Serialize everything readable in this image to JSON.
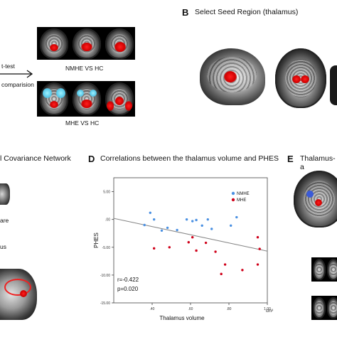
{
  "panelA": {
    "ttest_label": "t-test",
    "comparison_label": "comparision",
    "row1_caption": "NMHE VS  HC",
    "row2_caption": "MHE VS  HC"
  },
  "panelB": {
    "letter": "B",
    "title": "Select Seed Region (thalamus)"
  },
  "panelC": {
    "title_fragment": "l Covariance Network",
    "label1": "are",
    "label2": "us"
  },
  "panelD": {
    "letter": "D",
    "title": "Correlations between the thalamus volume and PHES"
  },
  "panelE": {
    "letter": "E",
    "title": "Thalamus-a"
  },
  "chart_data": {
    "type": "scatter",
    "title": "Correlations between the thalamus volume and PHES",
    "xlabel": "Thalamus volume",
    "xunit": "cm³",
    "ylabel": "PHES",
    "xlim": [
      0.2,
      1.0
    ],
    "ylim": [
      -15.0,
      7.5
    ],
    "xticks": [
      ".40",
      ".60",
      ".80",
      "1.00"
    ],
    "xtick_values": [
      0.4,
      0.6,
      0.8,
      1.0
    ],
    "yticks": [
      "5.00",
      ".00",
      "-5.00",
      "-10.00",
      "-15.00"
    ],
    "ytick_values": [
      5,
      0,
      -5,
      -10,
      -15
    ],
    "legend_position": "top-right",
    "series": [
      {
        "name": "NMHE",
        "color": "#4a90e2",
        "points": [
          [
            0.36,
            -1.0
          ],
          [
            0.39,
            1.2
          ],
          [
            0.41,
            0.0
          ],
          [
            0.45,
            -2.0
          ],
          [
            0.48,
            -1.5
          ],
          [
            0.53,
            -1.9
          ],
          [
            0.58,
            0.0
          ],
          [
            0.61,
            -0.3
          ],
          [
            0.63,
            -0.1
          ],
          [
            0.66,
            -1.1
          ],
          [
            0.69,
            0.0
          ],
          [
            0.71,
            -1.7
          ],
          [
            0.81,
            -1.1
          ],
          [
            0.84,
            0.4
          ]
        ]
      },
      {
        "name": "MHE",
        "color": "#d0021b",
        "points": [
          [
            0.41,
            -5.2
          ],
          [
            0.49,
            -5.0
          ],
          [
            0.59,
            -4.1
          ],
          [
            0.61,
            -3.2
          ],
          [
            0.63,
            -5.6
          ],
          [
            0.68,
            -4.2
          ],
          [
            0.73,
            -5.8
          ],
          [
            0.76,
            -9.8
          ],
          [
            0.78,
            -8.1
          ],
          [
            0.87,
            -9.1
          ],
          [
            0.95,
            -3.2
          ],
          [
            0.95,
            -8.1
          ],
          [
            0.96,
            -5.3
          ]
        ]
      }
    ],
    "regression": {
      "x": [
        0.2,
        1.0
      ],
      "y": [
        0.2,
        -5.7
      ]
    },
    "annotations": [
      "r=-0.422",
      "p=0.020"
    ]
  }
}
